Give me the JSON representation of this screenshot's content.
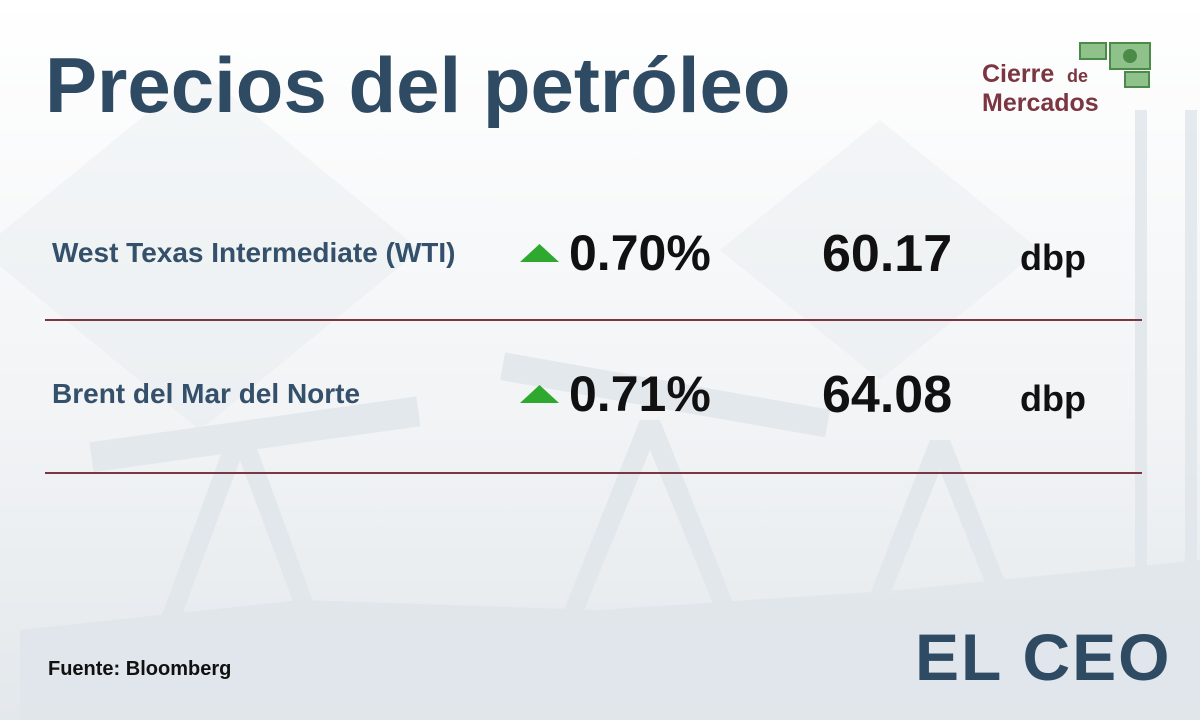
{
  "header": {
    "title": "Precios del petróleo",
    "logo_line1": "Cierre",
    "logo_small": "de",
    "logo_line2": "Mercados"
  },
  "table": {
    "rows": [
      {
        "name": "West Texas Intermediate (WTI)",
        "change": "0.70%",
        "price": "60.17",
        "unit": "dbp"
      },
      {
        "name": "Brent del Mar del Norte",
        "change": "0.71%",
        "price": "64.08",
        "unit": "dbp"
      }
    ]
  },
  "footer": {
    "source": "Fuente: Bloomberg",
    "brand": "EL CEO"
  }
}
